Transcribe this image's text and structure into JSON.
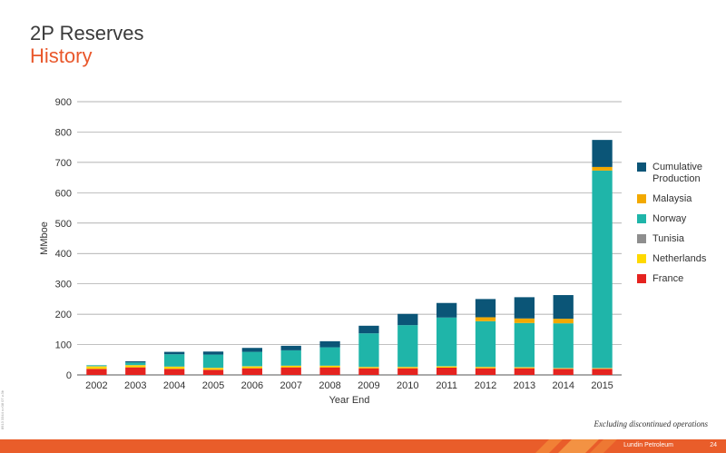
{
  "header": {
    "title": "2P Reserves",
    "subtitle": "History"
  },
  "footnote": "Excluding discontinued operations",
  "side_code": "8913 3344 o.r08 07 v.3b",
  "footer": {
    "company": "Lundin Petroleum",
    "page": "24"
  },
  "colors": {
    "Cumulative Production": "#0b5577",
    "Malaysia": "#f2a900",
    "Norway": "#1fb5a9",
    "Tunisia": "#8e8e8e",
    "Netherlands": "#ffd900",
    "France": "#e5231f"
  },
  "chart_data": {
    "type": "bar",
    "stacked": true,
    "categories": [
      "2002",
      "2003",
      "2004",
      "2005",
      "2006",
      "2007",
      "2008",
      "2009",
      "2010",
      "2011",
      "2012",
      "2013",
      "2014",
      "2015"
    ],
    "xlabel": "Year End",
    "ylabel": "MMboe",
    "ylim": [
      0,
      900
    ],
    "yticks": [
      0,
      100,
      200,
      300,
      400,
      500,
      600,
      700,
      800,
      900
    ],
    "grid": true,
    "legend_position": "right",
    "series": [
      {
        "name": "France",
        "values": [
          20,
          25,
          20,
          17,
          22,
          25,
          25,
          22,
          22,
          24,
          22,
          22,
          20,
          20
        ]
      },
      {
        "name": "Netherlands",
        "values": [
          8,
          7,
          7,
          6,
          6,
          5,
          5,
          4,
          4,
          4,
          4,
          3,
          2,
          2
        ]
      },
      {
        "name": "Tunisia",
        "values": [
          1,
          1,
          1,
          1,
          1,
          1,
          1,
          1,
          1,
          1,
          1,
          1,
          1,
          1
        ]
      },
      {
        "name": "Norway",
        "values": [
          3,
          8,
          40,
          43,
          47,
          50,
          60,
          110,
          137,
          160,
          150,
          145,
          147,
          650
        ]
      },
      {
        "name": "Malaysia",
        "values": [
          0,
          0,
          0,
          0,
          0,
          0,
          0,
          0,
          0,
          0,
          13,
          15,
          15,
          12
        ]
      },
      {
        "name": "Cumulative Production",
        "values": [
          0,
          4,
          8,
          10,
          13,
          15,
          20,
          25,
          37,
          48,
          60,
          70,
          78,
          89
        ]
      }
    ],
    "legend_order": [
      "Cumulative Production",
      "Malaysia",
      "Norway",
      "Tunisia",
      "Netherlands",
      "France"
    ]
  }
}
